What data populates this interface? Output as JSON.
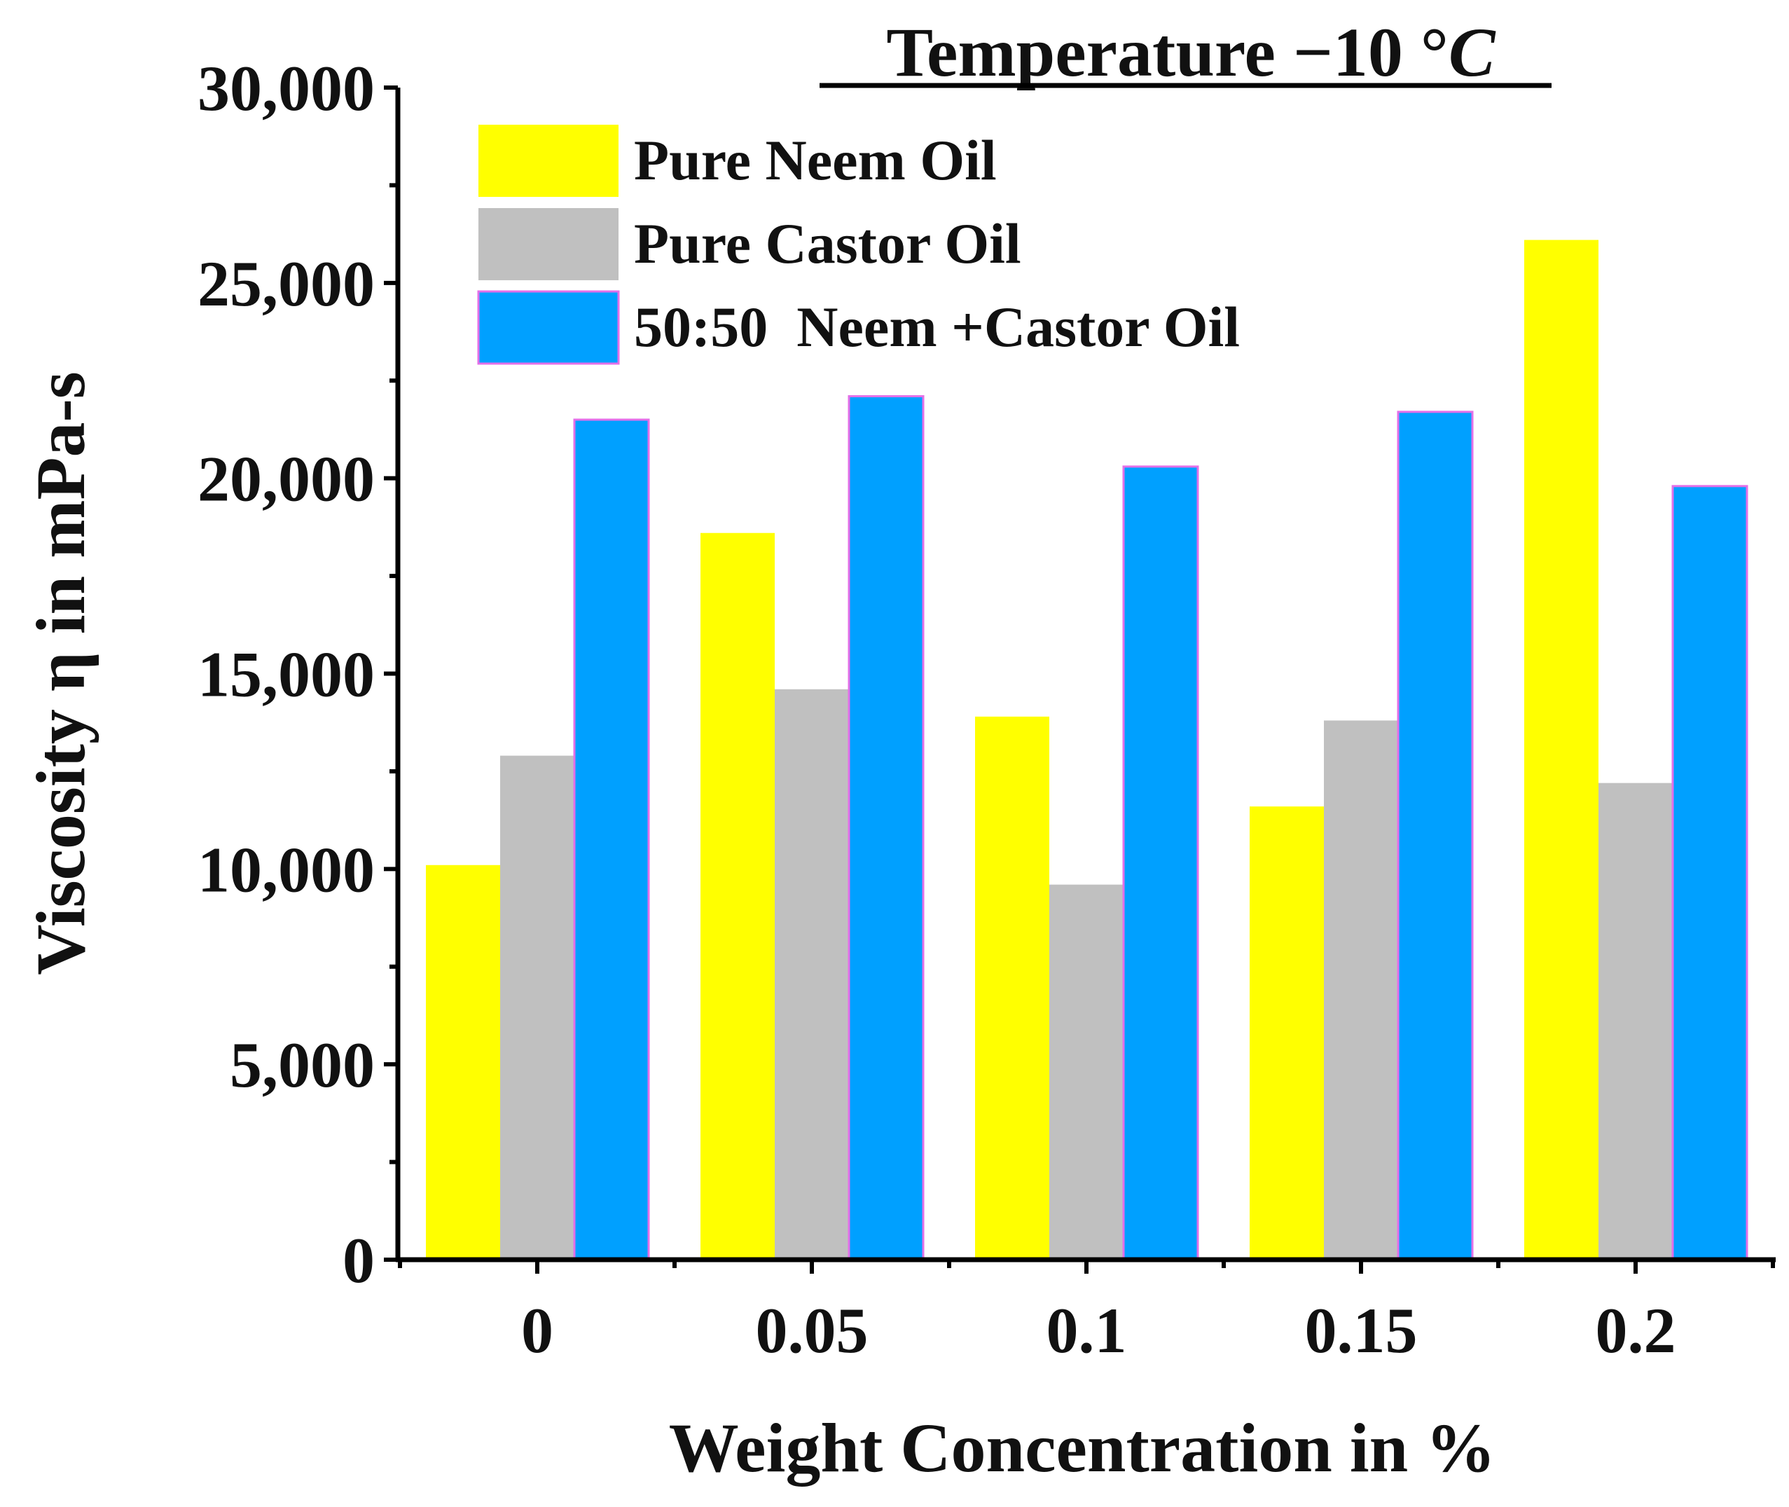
{
  "chart_data": {
    "type": "bar",
    "title_main": "Temperature −10 °",
    "title_unit": "C",
    "xlabel": "Weight Concentration in %",
    "ylabel": "Viscosity η in mPa-s",
    "categories": [
      "0",
      "0.05",
      "0.1",
      "0.15",
      "0.2"
    ],
    "ylim": [
      0,
      30000
    ],
    "yticks": [
      0,
      5000,
      10000,
      15000,
      20000,
      25000,
      30000
    ],
    "ytick_labels": [
      "0",
      "5,000",
      "10,000",
      "15,000",
      "20,000",
      "25,000",
      "30,000"
    ],
    "grid": false,
    "legend_position": "top-left",
    "series": [
      {
        "name": "Pure Neem Oil",
        "color": "#ffff00",
        "values": [
          10100,
          18600,
          13900,
          11600,
          26100
        ]
      },
      {
        "name": "Pure Castor Oil",
        "color": "#c0c0c0",
        "values": [
          12900,
          14600,
          9600,
          13800,
          12200
        ]
      },
      {
        "name": "50:50  Neem +Castor Oil",
        "color": "#00a0ff",
        "values": [
          21500,
          22100,
          20300,
          21700,
          19800
        ]
      }
    ]
  }
}
